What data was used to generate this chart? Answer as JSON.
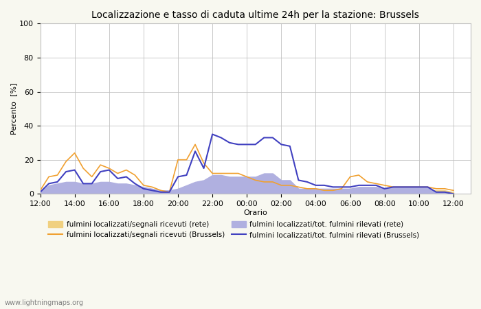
{
  "title": "Localizzazione e tasso di caduta ultime 24h per la stazione: Brussels",
  "xlabel": "Orario",
  "ylabel": "Percento  [%]",
  "xlim": [
    0,
    25
  ],
  "ylim": [
    0,
    100
  ],
  "yticks": [
    0,
    20,
    40,
    60,
    80,
    100
  ],
  "xtick_labels": [
    "12:00",
    "14:00",
    "16:00",
    "18:00",
    "20:00",
    "22:00",
    "00:00",
    "02:00",
    "04:00",
    "06:00",
    "08:00",
    "10:00",
    "12:00"
  ],
  "xtick_positions": [
    0,
    2,
    4,
    6,
    8,
    10,
    12,
    14,
    16,
    18,
    20,
    22,
    24
  ],
  "watermark": "www.lightningmaps.org",
  "orange_line_x": [
    0,
    0.5,
    1,
    1.5,
    2,
    2.5,
    3,
    3.5,
    4,
    4.5,
    5,
    5.5,
    6,
    6.5,
    7,
    7.5,
    8,
    8.5,
    9,
    9.5,
    10,
    10.5,
    11,
    11.5,
    12,
    12.5,
    13,
    13.5,
    14,
    14.5,
    15,
    15.5,
    16,
    16.5,
    17,
    17.5,
    18,
    18.5,
    19,
    19.5,
    20,
    20.5,
    21,
    21.5,
    22,
    22.5,
    23,
    23.5,
    24
  ],
  "orange_line_y": [
    2,
    10,
    11,
    19,
    24,
    15,
    10,
    17,
    15,
    12,
    14,
    11,
    5,
    4,
    2,
    1,
    20,
    20,
    29,
    18,
    12,
    12,
    12,
    12,
    10,
    8,
    7,
    7,
    5,
    5,
    4,
    3,
    3,
    2,
    2,
    3,
    10,
    11,
    7,
    6,
    5,
    4,
    4,
    4,
    4,
    4,
    3,
    3,
    2
  ],
  "orange_fill_x": [
    0,
    0.5,
    1,
    1.5,
    2,
    2.5,
    3,
    3.5,
    4,
    4.5,
    5,
    5.5,
    6,
    6.5,
    7,
    7.5,
    8,
    8.5,
    9,
    9.5,
    10,
    10.5,
    11,
    11.5,
    12,
    12.5,
    13,
    13.5,
    14,
    14.5,
    15,
    15.5,
    16,
    16.5,
    17,
    17.5,
    18,
    18.5,
    19,
    19.5,
    20,
    20.5,
    21,
    21.5,
    22,
    22.5,
    23,
    23.5,
    24
  ],
  "orange_fill_y": [
    1,
    3,
    3,
    4,
    4,
    3,
    3,
    4,
    4,
    3,
    3,
    3,
    2,
    2,
    1,
    1,
    2,
    2,
    3,
    3,
    2,
    2,
    2,
    2,
    2,
    2,
    2,
    2,
    2,
    2,
    2,
    2,
    2,
    2,
    1,
    2,
    3,
    3,
    3,
    2,
    2,
    2,
    2,
    2,
    2,
    2,
    2,
    2,
    1
  ],
  "blue_line_x": [
    0,
    0.5,
    1,
    1.5,
    2,
    2.5,
    3,
    3.5,
    4,
    4.5,
    5,
    5.5,
    6,
    6.5,
    7,
    7.5,
    8,
    8.5,
    9,
    9.5,
    10,
    10.5,
    11,
    11.5,
    12,
    12.5,
    13,
    13.5,
    14,
    14.5,
    15,
    15.5,
    16,
    16.5,
    17,
    17.5,
    18,
    18.5,
    19,
    19.5,
    20,
    20.5,
    21,
    21.5,
    22,
    22.5,
    23,
    23.5,
    24
  ],
  "blue_line_y": [
    1,
    6,
    7,
    13,
    14,
    6,
    6,
    13,
    14,
    9,
    10,
    6,
    3,
    2,
    1,
    1,
    10,
    11,
    25,
    15,
    35,
    33,
    30,
    29,
    29,
    29,
    33,
    33,
    29,
    28,
    8,
    7,
    5,
    5,
    4,
    4,
    4,
    5,
    5,
    5,
    3,
    4,
    4,
    4,
    4,
    4,
    1,
    1,
    0
  ],
  "blue_fill_x": [
    0,
    0.5,
    1,
    1.5,
    2,
    2.5,
    3,
    3.5,
    4,
    4.5,
    5,
    5.5,
    6,
    6.5,
    7,
    7.5,
    8,
    8.5,
    9,
    9.5,
    10,
    10.5,
    11,
    11.5,
    12,
    12.5,
    13,
    13.5,
    14,
    14.5,
    15,
    15.5,
    16,
    16.5,
    17,
    17.5,
    18,
    18.5,
    19,
    19.5,
    20,
    20.5,
    21,
    21.5,
    22,
    22.5,
    23,
    23.5,
    24
  ],
  "blue_fill_y": [
    1,
    5,
    6,
    7,
    7,
    6,
    6,
    7,
    7,
    6,
    6,
    5,
    4,
    3,
    2,
    2,
    3,
    5,
    7,
    8,
    11,
    11,
    10,
    10,
    10,
    10,
    12,
    12,
    8,
    8,
    3,
    3,
    3,
    3,
    3,
    3,
    3,
    4,
    4,
    4,
    3,
    4,
    4,
    4,
    4,
    4,
    1,
    1,
    0
  ],
  "color_orange_line": "#f0a030",
  "color_orange_fill": "#f0d080",
  "color_blue_line": "#4040c0",
  "color_blue_fill": "#b0b0e0",
  "background_color": "#f8f8f0",
  "plot_bg_color": "#ffffff",
  "grid_color": "#c0c0c0"
}
